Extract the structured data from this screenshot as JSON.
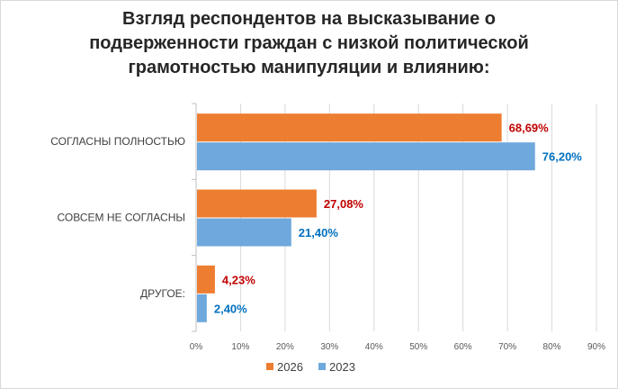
{
  "chart_data": {
    "type": "bar",
    "orientation": "horizontal",
    "title": [
      "Взгляд респондентов на высказывание о",
      "подверженности граждан с низкой политической",
      "грамотностью манипуляции и влиянию:"
    ],
    "categories": [
      "СОГЛАСНЫ ПОЛНОСТЬЮ",
      "СОВСЕМ НЕ СОГЛАСНЫ",
      "ДРУГОЕ:"
    ],
    "series": [
      {
        "name": "2026",
        "values": [
          68.69,
          27.08,
          4.23
        ],
        "labels": [
          "68,69%",
          "27,08%",
          "4,23%"
        ],
        "color": "#ed7d31",
        "label_color": "#c00000"
      },
      {
        "name": "2023",
        "values": [
          76.2,
          21.4,
          2.4
        ],
        "labels": [
          "76,20%",
          "21,40%",
          "2,40%"
        ],
        "color": "#6fa8dc",
        "label_color": "#0070c0"
      }
    ],
    "xlim": [
      0,
      90
    ],
    "xticks": [
      0,
      10,
      20,
      30,
      40,
      50,
      60,
      70,
      80,
      90
    ],
    "xtick_labels": [
      "0%",
      "10%",
      "20%",
      "30%",
      "40%",
      "50%",
      "60%",
      "70%",
      "80%",
      "90%"
    ],
    "grid": true,
    "legend": "bottom"
  }
}
